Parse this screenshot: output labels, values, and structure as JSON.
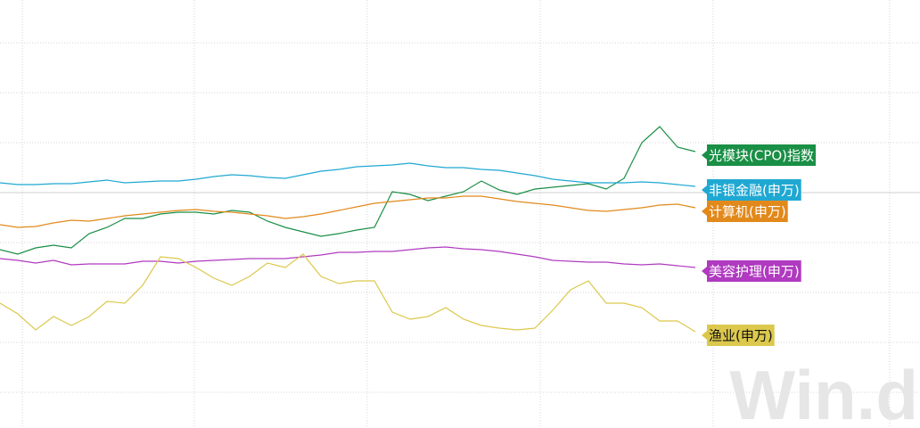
{
  "chart_data": {
    "type": "line",
    "watermark": "Win.d",
    "x": [
      0,
      20,
      40,
      60,
      80,
      100,
      120,
      140,
      160,
      180,
      200,
      220,
      240,
      260,
      280,
      300,
      320,
      340,
      360,
      380,
      400,
      420,
      440,
      460,
      480,
      500,
      520,
      540,
      560,
      580,
      600,
      620,
      640,
      660,
      680,
      700,
      720,
      740,
      760,
      780
    ],
    "xlim": [
      0,
      1032
    ],
    "xticks": [
      25,
      218,
      412,
      606,
      800,
      998
    ],
    "ylim": [
      0,
      480
    ],
    "yticks": [
      40,
      96,
      152,
      208,
      264,
      320,
      376,
      432
    ],
    "baseline": 264,
    "grid": true,
    "series": [
      {
        "name": "光模块(CPO)指数",
        "color": "#1a8f46",
        "values": [
          200,
          195,
          202,
          205,
          202,
          218,
          225,
          235,
          235,
          240,
          242,
          242,
          240,
          244,
          242,
          232,
          225,
          220,
          215,
          218,
          222,
          225,
          265,
          262,
          255,
          260,
          265,
          277,
          267,
          262,
          268,
          270,
          272,
          274,
          268,
          280,
          320,
          338,
          315,
          310
        ]
      },
      {
        "name": "非银金融(申万)",
        "color": "#1fa8d2",
        "values": [
          275,
          273,
          273,
          274,
          274,
          276,
          278,
          275,
          276,
          277,
          277,
          279,
          282,
          284,
          283,
          281,
          280,
          284,
          288,
          290,
          293,
          294,
          295,
          297,
          294,
          292,
          292,
          290,
          289,
          286,
          283,
          279,
          277,
          275,
          275,
          275,
          276,
          275,
          273,
          271
        ]
      },
      {
        "name": "计算机(申万)",
        "color": "#e2891c",
        "values": [
          228,
          225,
          226,
          230,
          233,
          232,
          235,
          238,
          240,
          242,
          244,
          245,
          243,
          242,
          240,
          238,
          235,
          237,
          240,
          244,
          248,
          252,
          254,
          256,
          258,
          258,
          260,
          260,
          257,
          254,
          252,
          250,
          247,
          244,
          243,
          245,
          247,
          250,
          251,
          247
        ]
      },
      {
        "name": "美容护理(申万)",
        "color": "#b03ac0",
        "values": [
          190,
          188,
          185,
          188,
          183,
          184,
          184,
          184,
          187,
          187,
          185,
          187,
          188,
          189,
          190,
          190,
          190,
          192,
          194,
          197,
          197,
          198,
          198,
          200,
          202,
          203,
          201,
          200,
          198,
          195,
          192,
          188,
          187,
          186,
          186,
          184,
          183,
          184,
          182,
          180
        ]
      },
      {
        "name": "渔业(申万)",
        "color": "#dcc84c",
        "values": [
          140,
          128,
          110,
          125,
          115,
          125,
          142,
          140,
          160,
          192,
          190,
          180,
          168,
          160,
          170,
          185,
          180,
          195,
          170,
          162,
          165,
          165,
          130,
          122,
          125,
          135,
          122,
          115,
          112,
          110,
          112,
          132,
          155,
          165,
          140,
          140,
          135,
          120,
          120,
          108
        ]
      }
    ]
  }
}
